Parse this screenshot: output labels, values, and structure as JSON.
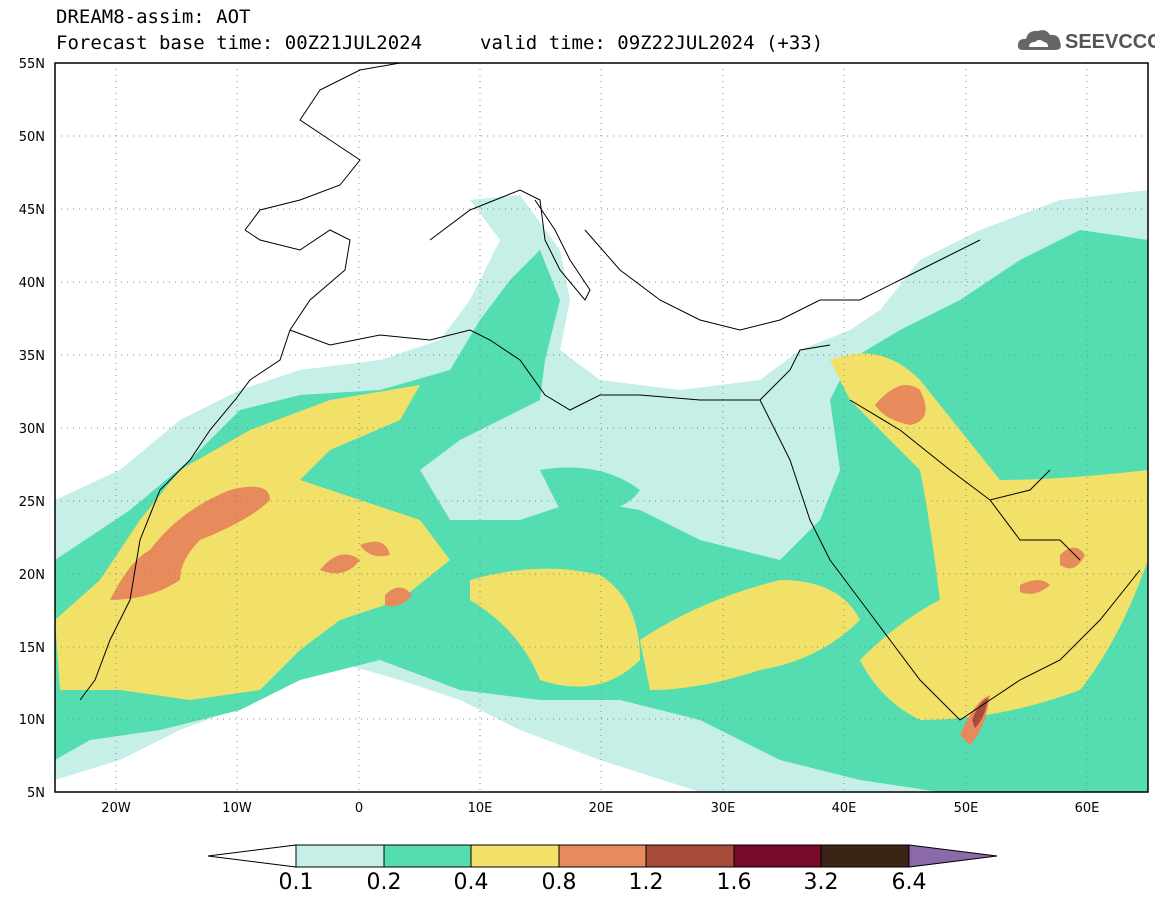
{
  "header": {
    "model_line": "DREAM8-assim: AOT",
    "forecast_line": "Forecast base time: 00Z21JUL2024",
    "valid_line": "valid time: 09Z22JUL2024 (+33)"
  },
  "logo": {
    "text": "SEEVCCC",
    "icon": "cloud-icon"
  },
  "map": {
    "variable": "AOT",
    "lon_range": [
      -25,
      65
    ],
    "lat_range": [
      5,
      55
    ],
    "lat_ticks": [
      "55N",
      "50N",
      "45N",
      "40N",
      "35N",
      "30N",
      "25N",
      "20N",
      "15N",
      "10N",
      "5N"
    ],
    "lon_ticks": [
      "20W",
      "10W",
      "0",
      "10E",
      "20E",
      "30E",
      "40E",
      "50E",
      "60E"
    ],
    "grid": "dotted"
  },
  "colorbar": {
    "labels": [
      "0.1",
      "0.2",
      "0.4",
      "0.8",
      "1.2",
      "1.6",
      "3.2",
      "6.4"
    ],
    "colors": [
      "#ffffff",
      "#c6efe8",
      "#55ddb2",
      "#f2e169",
      "#e78a5c",
      "#a84a3a",
      "#7a0a2a",
      "#3a2416",
      "#8a6aaa"
    ]
  }
}
